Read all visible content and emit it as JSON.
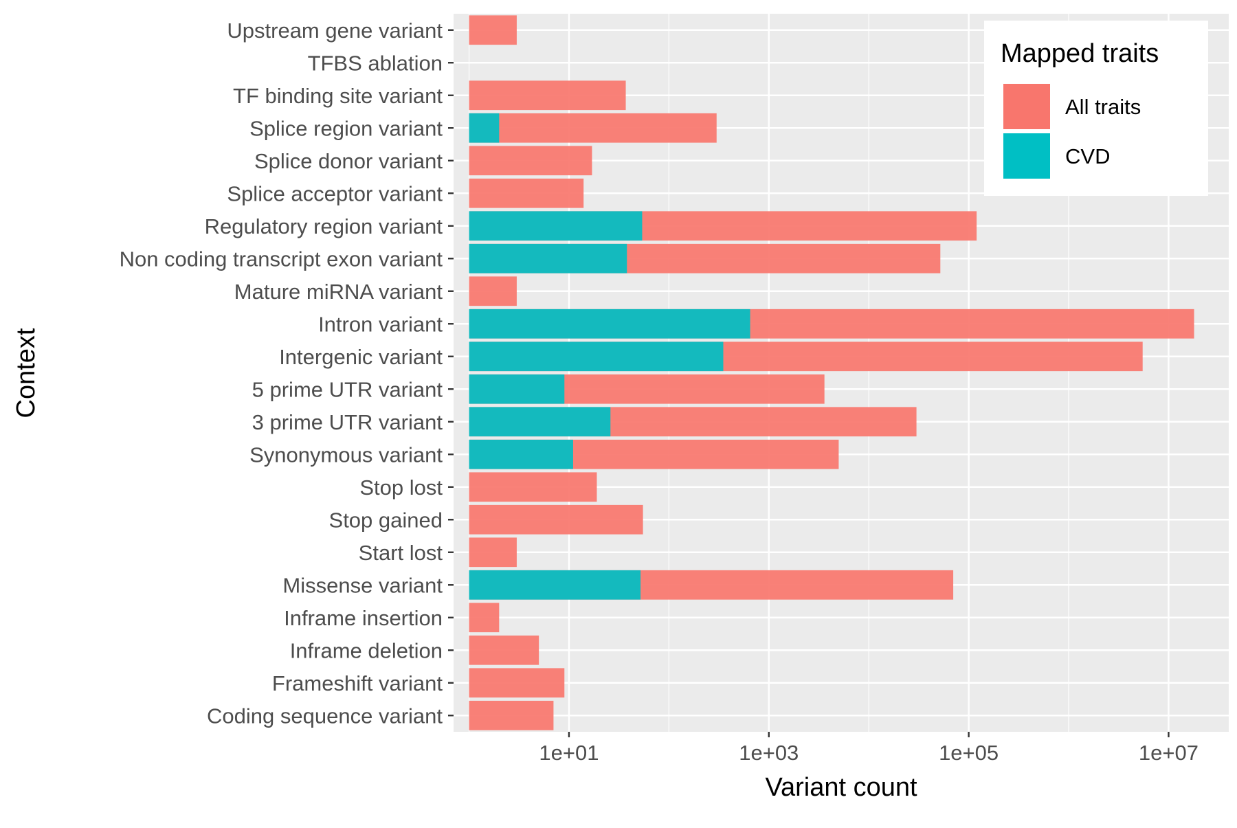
{
  "chart_data": {
    "type": "bar",
    "orientation": "horizontal",
    "x_scale": "log10",
    "xlabel": "Variant count",
    "ylabel": "Context",
    "xlim": [
      0.7,
      40000000
    ],
    "x_ticks": [
      10,
      1000,
      100000,
      10000000
    ],
    "x_tick_labels": [
      "1e+01",
      "1e+03",
      "1e+05",
      "1e+07"
    ],
    "baseline": 1,
    "grid": true,
    "legend": {
      "title": "Mapped traits",
      "position": "top-right",
      "items": [
        "All traits",
        "CVD"
      ]
    },
    "colors": {
      "All traits": "#F8766D",
      "CVD": "#00BFC4"
    },
    "categories": [
      "Upstream gene variant",
      "TFBS ablation",
      "TF binding site variant",
      "Splice region variant",
      "Splice donor variant",
      "Splice acceptor variant",
      "Regulatory region variant",
      "Non coding transcript exon variant",
      "Mature miRNA variant",
      "Intron variant",
      "Intergenic variant",
      "5 prime UTR variant",
      "3 prime UTR variant",
      "Synonymous variant",
      "Stop lost",
      "Stop gained",
      "Start lost",
      "Missense variant",
      "Inframe insertion",
      "Inframe deletion",
      "Frameshift variant",
      "Coding sequence variant"
    ],
    "series": [
      {
        "name": "All traits",
        "values": [
          3,
          null,
          37,
          300,
          17,
          14,
          120000,
          52000,
          3,
          18000000,
          5500000,
          3600,
          30000,
          5000,
          19,
          55,
          3,
          70000,
          2,
          5,
          9,
          7
        ]
      },
      {
        "name": "CVD",
        "values": [
          null,
          null,
          null,
          2,
          null,
          null,
          54,
          38,
          null,
          650,
          350,
          9,
          26,
          11,
          null,
          null,
          null,
          52,
          null,
          null,
          null,
          null
        ]
      }
    ]
  }
}
